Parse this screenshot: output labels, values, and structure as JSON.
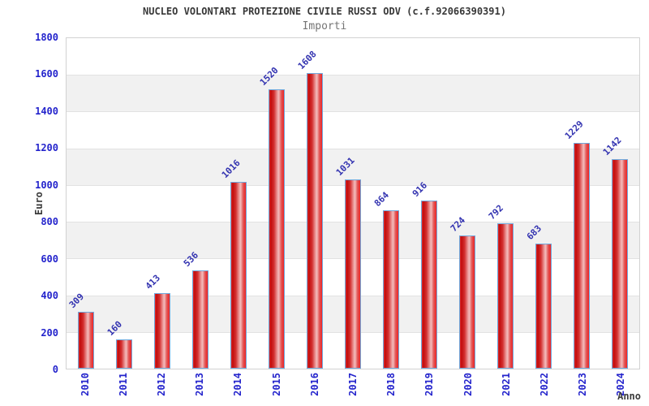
{
  "chart_data": {
    "type": "bar",
    "title": "NUCLEO VOLONTARI PROTEZIONE CIVILE RUSSI ODV (c.f.92066390391)",
    "subtitle": "Importi",
    "xlabel": "Anno",
    "ylabel": "Euro",
    "categories": [
      "2010",
      "2011",
      "2012",
      "2013",
      "2014",
      "2015",
      "2016",
      "2017",
      "2018",
      "2019",
      "2020",
      "2021",
      "2022",
      "2023",
      "2024"
    ],
    "values": [
      309,
      160,
      413,
      536,
      1016,
      1520,
      1608,
      1031,
      864,
      916,
      724,
      792,
      683,
      1229,
      1142
    ],
    "yticks": [
      0,
      200,
      400,
      600,
      800,
      1000,
      1200,
      1400,
      1600,
      1800
    ],
    "ylim": [
      0,
      1800
    ],
    "grid": "horizontal-alternating-bands",
    "legend": "none",
    "bar_labels_rotation_deg": -45,
    "x_labels_rotation_deg": -90,
    "colors": {
      "bar_fill_dark": "#c20c0c",
      "bar_fill_light": "#f3bcbc",
      "bar_border": "#6fa8dc",
      "tick_label_blue": "#2424cc",
      "value_label_blue": "#3232b0",
      "band_gray": "#f1f1f1",
      "plot_border": "#d2d2d2",
      "title_color": "#383838",
      "subtitle_color": "#757575"
    }
  }
}
